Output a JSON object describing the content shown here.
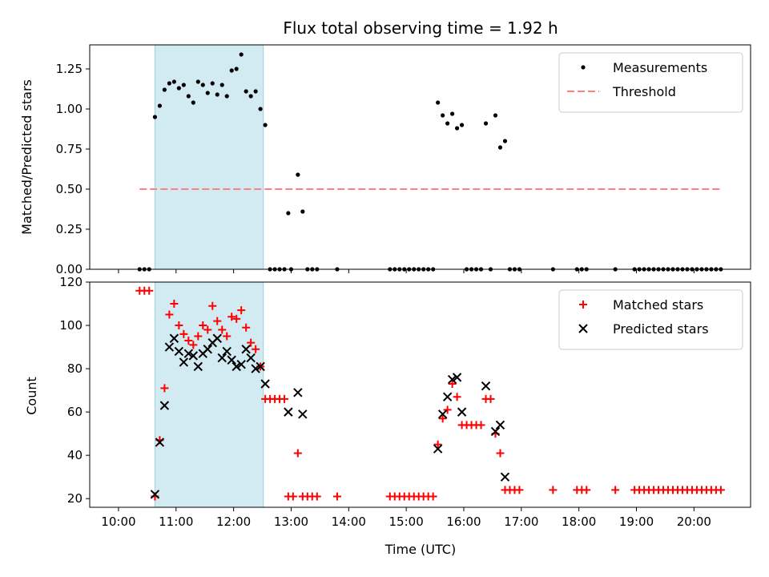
{
  "chart_data": [
    {
      "type": "scatter",
      "title": "Flux total observing time = 1.92 h",
      "ylabel": "Matched/Predicted stars",
      "xlabel": "",
      "xlim": [
        "10:00",
        "21:00"
      ],
      "ylim": [
        0,
        1.4
      ],
      "yticks": [
        "0.00",
        "0.25",
        "0.50",
        "0.75",
        "1.00",
        "1.25"
      ],
      "shaded_span": [
        "10:38",
        "12:31"
      ],
      "legend_position": "upper right",
      "series": [
        {
          "name": "Measurements",
          "color": "#000000",
          "marker": "dot",
          "points": [
            [
              "10:22",
              0
            ],
            [
              "10:27",
              0
            ],
            [
              "10:32",
              0
            ],
            [
              "10:38",
              0.95
            ],
            [
              "10:43",
              1.02
            ],
            [
              "10:48",
              1.12
            ],
            [
              "10:53",
              1.16
            ],
            [
              "10:58",
              1.17
            ],
            [
              "11:03",
              1.13
            ],
            [
              "11:08",
              1.15
            ],
            [
              "11:13",
              1.08
            ],
            [
              "11:18",
              1.04
            ],
            [
              "11:23",
              1.17
            ],
            [
              "11:28",
              1.15
            ],
            [
              "11:33",
              1.1
            ],
            [
              "11:38",
              1.16
            ],
            [
              "11:43",
              1.09
            ],
            [
              "11:48",
              1.15
            ],
            [
              "11:53",
              1.08
            ],
            [
              "11:58",
              1.24
            ],
            [
              "12:03",
              1.25
            ],
            [
              "12:08",
              1.34
            ],
            [
              "12:13",
              1.11
            ],
            [
              "12:18",
              1.08
            ],
            [
              "12:23",
              1.11
            ],
            [
              "12:28",
              1.0
            ],
            [
              "12:33",
              0.9
            ],
            [
              "12:38",
              0
            ],
            [
              "12:43",
              0
            ],
            [
              "12:48",
              0
            ],
            [
              "12:53",
              0
            ],
            [
              "12:57",
              0.35
            ],
            [
              "13:00",
              0
            ],
            [
              "13:07",
              0.59
            ],
            [
              "13:12",
              0.36
            ],
            [
              "13:17",
              0
            ],
            [
              "13:22",
              0
            ],
            [
              "13:27",
              0
            ],
            [
              "13:48",
              0
            ],
            [
              "14:43",
              0
            ],
            [
              "14:48",
              0
            ],
            [
              "14:53",
              0
            ],
            [
              "14:58",
              0
            ],
            [
              "15:03",
              0
            ],
            [
              "15:08",
              0
            ],
            [
              "15:13",
              0
            ],
            [
              "15:18",
              0
            ],
            [
              "15:23",
              0
            ],
            [
              "15:28",
              0
            ],
            [
              "15:33",
              1.04
            ],
            [
              "15:38",
              0.96
            ],
            [
              "15:43",
              0.91
            ],
            [
              "15:48",
              0.97
            ],
            [
              "15:53",
              0.88
            ],
            [
              "15:58",
              0.9
            ],
            [
              "16:03",
              0
            ],
            [
              "16:08",
              0
            ],
            [
              "16:13",
              0
            ],
            [
              "16:18",
              0
            ],
            [
              "16:23",
              0.91
            ],
            [
              "16:28",
              0
            ],
            [
              "16:33",
              0.96
            ],
            [
              "16:38",
              0.76
            ],
            [
              "16:43",
              0.8
            ],
            [
              "16:48",
              0
            ],
            [
              "16:53",
              0
            ],
            [
              "16:58",
              0
            ],
            [
              "17:33",
              0
            ],
            [
              "17:58",
              0
            ],
            [
              "18:03",
              0
            ],
            [
              "18:08",
              0
            ],
            [
              "18:38",
              0
            ],
            [
              "18:58",
              0
            ],
            [
              "19:03",
              0
            ],
            [
              "19:08",
              0
            ],
            [
              "19:13",
              0
            ],
            [
              "19:18",
              0
            ],
            [
              "19:23",
              0
            ],
            [
              "19:28",
              0
            ],
            [
              "19:33",
              0
            ],
            [
              "19:38",
              0
            ],
            [
              "19:43",
              0
            ],
            [
              "19:48",
              0
            ],
            [
              "19:53",
              0
            ],
            [
              "19:58",
              0
            ],
            [
              "20:03",
              0
            ],
            [
              "20:08",
              0
            ],
            [
              "20:13",
              0
            ],
            [
              "20:18",
              0
            ],
            [
              "20:23",
              0
            ],
            [
              "20:28",
              0
            ]
          ]
        },
        {
          "name": "Threshold",
          "color": "#ff8080",
          "marker": "dashed-line",
          "points": [
            [
              "10:22",
              0.5
            ],
            [
              "20:28",
              0.5
            ]
          ]
        }
      ]
    },
    {
      "type": "scatter",
      "title": "",
      "ylabel": "Count",
      "xlabel": "Time (UTC)",
      "xlim": [
        "10:00",
        "21:00"
      ],
      "ylim": [
        16,
        120
      ],
      "yticks": [
        "20",
        "40",
        "60",
        "80",
        "100",
        "120"
      ],
      "xticks": [
        "10:00",
        "11:00",
        "12:00",
        "13:00",
        "14:00",
        "15:00",
        "16:00",
        "17:00",
        "18:00",
        "19:00",
        "20:00"
      ],
      "shaded_span": [
        "10:38",
        "12:31"
      ],
      "legend_position": "upper right",
      "series": [
        {
          "name": "Matched stars",
          "color": "#ff0000",
          "marker": "plus",
          "points": [
            [
              "10:22",
              116
            ],
            [
              "10:27",
              116
            ],
            [
              "10:32",
              116
            ],
            [
              "10:38",
              21
            ],
            [
              "10:43",
              47
            ],
            [
              "10:48",
              71
            ],
            [
              "10:53",
              105
            ],
            [
              "10:58",
              110
            ],
            [
              "11:03",
              100
            ],
            [
              "11:08",
              96
            ],
            [
              "11:13",
              93
            ],
            [
              "11:18",
              91
            ],
            [
              "11:23",
              95
            ],
            [
              "11:28",
              100
            ],
            [
              "11:33",
              98
            ],
            [
              "11:38",
              109
            ],
            [
              "11:43",
              102
            ],
            [
              "11:48",
              98
            ],
            [
              "11:53",
              95
            ],
            [
              "11:58",
              104
            ],
            [
              "12:03",
              103
            ],
            [
              "12:08",
              107
            ],
            [
              "12:13",
              99
            ],
            [
              "12:18",
              92
            ],
            [
              "12:23",
              89
            ],
            [
              "12:28",
              81
            ],
            [
              "12:33",
              66
            ],
            [
              "12:38",
              66
            ],
            [
              "12:43",
              66
            ],
            [
              "12:48",
              66
            ],
            [
              "12:53",
              66
            ],
            [
              "12:57",
              21
            ],
            [
              "13:02",
              21
            ],
            [
              "13:07",
              41
            ],
            [
              "13:12",
              21
            ],
            [
              "13:17",
              21
            ],
            [
              "13:22",
              21
            ],
            [
              "13:27",
              21
            ],
            [
              "13:48",
              21
            ],
            [
              "14:43",
              21
            ],
            [
              "14:48",
              21
            ],
            [
              "14:53",
              21
            ],
            [
              "14:58",
              21
            ],
            [
              "15:03",
              21
            ],
            [
              "15:08",
              21
            ],
            [
              "15:13",
              21
            ],
            [
              "15:18",
              21
            ],
            [
              "15:23",
              21
            ],
            [
              "15:28",
              21
            ],
            [
              "15:33",
              45
            ],
            [
              "15:38",
              57
            ],
            [
              "15:43",
              61
            ],
            [
              "15:48",
              73
            ],
            [
              "15:53",
              67
            ],
            [
              "15:58",
              54
            ],
            [
              "16:03",
              54
            ],
            [
              "16:08",
              54
            ],
            [
              "16:13",
              54
            ],
            [
              "16:18",
              54
            ],
            [
              "16:23",
              66
            ],
            [
              "16:28",
              66
            ],
            [
              "16:33",
              50
            ],
            [
              "16:38",
              41
            ],
            [
              "16:43",
              24
            ],
            [
              "16:48",
              24
            ],
            [
              "16:53",
              24
            ],
            [
              "16:58",
              24
            ],
            [
              "17:33",
              24
            ],
            [
              "17:58",
              24
            ],
            [
              "18:03",
              24
            ],
            [
              "18:08",
              24
            ],
            [
              "18:38",
              24
            ],
            [
              "18:58",
              24
            ],
            [
              "19:03",
              24
            ],
            [
              "19:08",
              24
            ],
            [
              "19:13",
              24
            ],
            [
              "19:18",
              24
            ],
            [
              "19:23",
              24
            ],
            [
              "19:28",
              24
            ],
            [
              "19:33",
              24
            ],
            [
              "19:38",
              24
            ],
            [
              "19:43",
              24
            ],
            [
              "19:48",
              24
            ],
            [
              "19:53",
              24
            ],
            [
              "19:58",
              24
            ],
            [
              "20:03",
              24
            ],
            [
              "20:08",
              24
            ],
            [
              "20:13",
              24
            ],
            [
              "20:18",
              24
            ],
            [
              "20:23",
              24
            ],
            [
              "20:28",
              24
            ]
          ]
        },
        {
          "name": "Predicted stars",
          "color": "#000000",
          "marker": "x",
          "points": [
            [
              "10:38",
              22
            ],
            [
              "10:43",
              46
            ],
            [
              "10:48",
              63
            ],
            [
              "10:53",
              90
            ],
            [
              "10:58",
              94
            ],
            [
              "11:03",
              88
            ],
            [
              "11:08",
              83
            ],
            [
              "11:13",
              87
            ],
            [
              "11:18",
              86
            ],
            [
              "11:23",
              81
            ],
            [
              "11:28",
              87
            ],
            [
              "11:33",
              89
            ],
            [
              "11:38",
              92
            ],
            [
              "11:43",
              94
            ],
            [
              "11:48",
              85
            ],
            [
              "11:53",
              88
            ],
            [
              "11:58",
              84
            ],
            [
              "12:03",
              81
            ],
            [
              "12:08",
              82
            ],
            [
              "12:13",
              89
            ],
            [
              "12:18",
              85
            ],
            [
              "12:23",
              80
            ],
            [
              "12:28",
              81
            ],
            [
              "12:33",
              73
            ],
            [
              "12:57",
              60
            ],
            [
              "13:07",
              69
            ],
            [
              "13:12",
              59
            ],
            [
              "15:33",
              43
            ],
            [
              "15:38",
              59
            ],
            [
              "15:43",
              67
            ],
            [
              "15:48",
              75
            ],
            [
              "15:53",
              76
            ],
            [
              "15:58",
              60
            ],
            [
              "16:23",
              72
            ],
            [
              "16:33",
              51
            ],
            [
              "16:38",
              54
            ],
            [
              "16:43",
              30
            ]
          ]
        }
      ]
    }
  ]
}
